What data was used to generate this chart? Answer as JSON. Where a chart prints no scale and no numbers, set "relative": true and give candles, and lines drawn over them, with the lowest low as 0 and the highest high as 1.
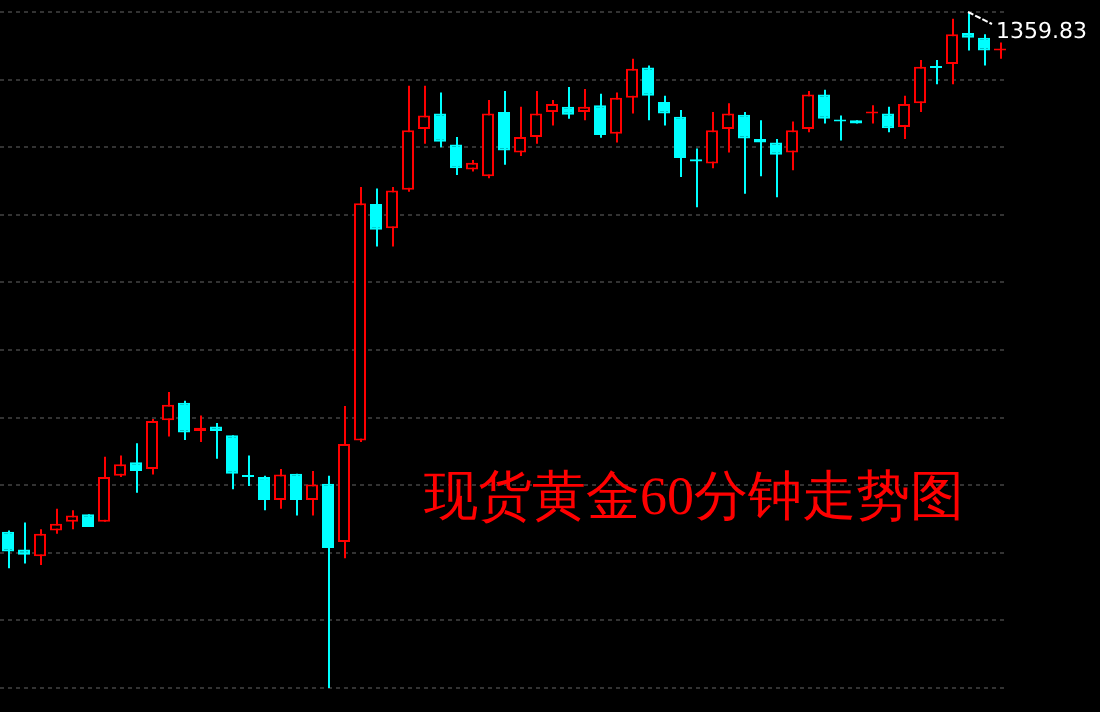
{
  "chart_data": {
    "type": "candlestick",
    "title": "现货黄金60分钟走势图",
    "relative": true,
    "grid": "y",
    "annotations": [
      "1359.83"
    ],
    "categories": [
      null,
      null,
      null,
      null,
      null,
      null,
      null,
      null,
      null,
      null,
      null,
      null,
      null,
      null,
      null,
      null,
      null,
      null,
      null,
      null,
      null,
      null,
      null,
      null,
      null,
      null,
      null,
      null,
      null,
      null,
      null,
      null,
      null,
      null,
      null,
      null,
      null,
      null,
      null,
      null,
      null,
      null,
      null,
      null,
      null,
      null,
      null,
      null,
      null,
      null,
      null,
      null,
      null,
      null,
      null,
      null,
      null,
      null,
      null,
      null,
      null,
      null,
      null
    ],
    "ohlc": [
      [
        0.231,
        0.233,
        0.177,
        0.202
      ],
      [
        0.205,
        0.245,
        0.184,
        0.197
      ],
      [
        0.195,
        0.235,
        0.182,
        0.228
      ],
      [
        0.233,
        0.265,
        0.228,
        0.243
      ],
      [
        0.246,
        0.263,
        0.235,
        0.255
      ],
      [
        0.257,
        0.257,
        0.238,
        0.238
      ],
      [
        0.246,
        0.342,
        0.246,
        0.312
      ],
      [
        0.314,
        0.344,
        0.312,
        0.331
      ],
      [
        0.334,
        0.362,
        0.289,
        0.321
      ],
      [
        0.324,
        0.398,
        0.316,
        0.395
      ],
      [
        0.396,
        0.438,
        0.372,
        0.419
      ],
      [
        0.422,
        0.425,
        0.367,
        0.378
      ],
      [
        0.38,
        0.403,
        0.364,
        0.385
      ],
      [
        0.387,
        0.392,
        0.339,
        0.38
      ],
      [
        0.374,
        0.374,
        0.294,
        0.317
      ],
      [
        0.314,
        0.344,
        0.299,
        0.312
      ],
      [
        0.312,
        0.314,
        0.263,
        0.278
      ],
      [
        0.278,
        0.324,
        0.265,
        0.316
      ],
      [
        0.317,
        0.317,
        0.255,
        0.278
      ],
      [
        0.278,
        0.321,
        0.255,
        0.301
      ],
      [
        0.302,
        0.314,
        0,
        0.207
      ],
      [
        0.216,
        0.417,
        0.192,
        0.361
      ],
      [
        0.366,
        0.741,
        0.364,
        0.717
      ],
      [
        0.716,
        0.739,
        0.653,
        0.678
      ],
      [
        0.68,
        0.741,
        0.653,
        0.736
      ],
      [
        0.737,
        0.891,
        0.734,
        0.825
      ],
      [
        0.827,
        0.891,
        0.805,
        0.847
      ],
      [
        0.85,
        0.881,
        0.8,
        0.808
      ],
      [
        0.804,
        0.815,
        0.759,
        0.769
      ],
      [
        0.767,
        0.781,
        0.764,
        0.777
      ],
      [
        0.757,
        0.87,
        0.754,
        0.85
      ],
      [
        0.852,
        0.883,
        0.774,
        0.795
      ],
      [
        0.792,
        0.86,
        0.787,
        0.815
      ],
      [
        0.815,
        0.883,
        0.805,
        0.85
      ],
      [
        0.852,
        0.87,
        0.832,
        0.864
      ],
      [
        0.86,
        0.889,
        0.842,
        0.848
      ],
      [
        0.852,
        0.886,
        0.84,
        0.86
      ],
      [
        0.862,
        0.879,
        0.814,
        0.818
      ],
      [
        0.82,
        0.881,
        0.807,
        0.873
      ],
      [
        0.873,
        0.931,
        0.85,
        0.916
      ],
      [
        0.918,
        0.921,
        0.84,
        0.876
      ],
      [
        0.867,
        0.876,
        0.832,
        0.85
      ],
      [
        0.845,
        0.855,
        0.756,
        0.784
      ],
      [
        0.782,
        0.798,
        0.711,
        0.779
      ],
      [
        0.776,
        0.852,
        0.769,
        0.825
      ],
      [
        0.827,
        0.865,
        0.792,
        0.85
      ],
      [
        0.848,
        0.852,
        0.731,
        0.813
      ],
      [
        0.812,
        0.84,
        0.757,
        0.807
      ],
      [
        0.807,
        0.812,
        0.726,
        0.789
      ],
      [
        0.792,
        0.838,
        0.766,
        0.825
      ],
      [
        0.827,
        0.883,
        0.822,
        0.878
      ],
      [
        0.878,
        0.885,
        0.835,
        0.842
      ],
      [
        0.84,
        0.847,
        0.81,
        0.838
      ],
      [
        0.84,
        0.84,
        0.835,
        0.835
      ],
      [
        0.85,
        0.862,
        0.835,
        0.852
      ],
      [
        0.85,
        0.86,
        0.822,
        0.828
      ],
      [
        0.83,
        0.876,
        0.812,
        0.864
      ],
      [
        0.865,
        0.929,
        0.852,
        0.919
      ],
      [
        0.919,
        0.929,
        0.893,
        0.917
      ],
      [
        0.923,
        0.99,
        0.893,
        0.967
      ],
      [
        0.969,
        1,
        0.943,
        0.962
      ],
      [
        0.962,
        0.967,
        0.921,
        0.943
      ],
      [
        0.943,
        0.955,
        0.931,
        0.945
      ]
    ],
    "colors": [
      "#00ffff",
      "#00ffff",
      "#ff0000",
      "#ff0000",
      "#ff0000",
      "#00ffff",
      "#ff0000",
      "#ff0000",
      "#00ffff",
      "#ff0000",
      "#ff0000",
      "#00ffff",
      "#ff0000",
      "#00ffff",
      "#00ffff",
      "#00ffff",
      "#00ffff",
      "#ff0000",
      "#00ffff",
      "#ff0000",
      "#00ffff",
      "#ff0000",
      "#ff0000",
      "#00ffff",
      "#ff0000",
      "#ff0000",
      "#ff0000",
      "#00ffff",
      "#00ffff",
      "#ff0000",
      "#ff0000",
      "#00ffff",
      "#ff0000",
      "#ff0000",
      "#ff0000",
      "#00ffff",
      "#ff0000",
      "#00ffff",
      "#ff0000",
      "#ff0000",
      "#00ffff",
      "#00ffff",
      "#00ffff",
      "#00ffff",
      "#ff0000",
      "#ff0000",
      "#00ffff",
      "#00ffff",
      "#00ffff",
      "#ff0000",
      "#ff0000",
      "#00ffff",
      "#00ffff",
      "#00ffff",
      "#ff0000",
      "#00ffff",
      "#ff0000",
      "#ff0000",
      "#00ffff",
      "#ff0000",
      "#00ffff",
      "#00ffff",
      "#ff0000"
    ]
  }
}
